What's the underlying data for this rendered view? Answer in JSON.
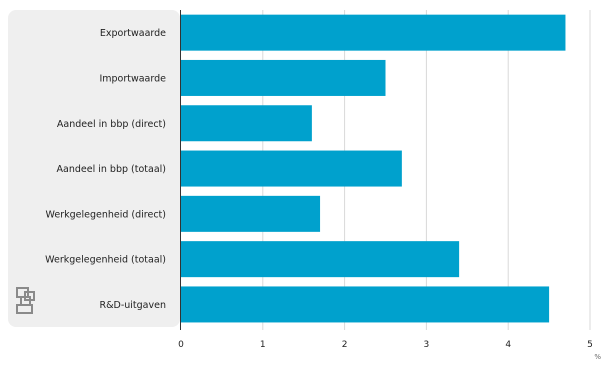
{
  "chart_data": {
    "type": "bar",
    "orientation": "horizontal",
    "categories": [
      "Exportwaarde",
      "Importwaarde",
      "Aandeel in bbp (direct)",
      "Aandeel in bbp (totaal)",
      "Werkgelegenheid (direct)",
      "Werkgelegenheid (totaal)",
      "R&D-uitgaven"
    ],
    "values": [
      4.7,
      2.5,
      1.6,
      2.7,
      1.7,
      3.4,
      4.5
    ],
    "xlim": [
      0,
      5
    ],
    "xticks": [
      "0",
      "1",
      "2",
      "3",
      "4",
      "5"
    ],
    "unit": "%",
    "grid": true,
    "colors": {
      "bar": "#00a1cd",
      "panel": "#efefef",
      "grid": "#d9d9d9",
      "axis": "#333333",
      "text": "#222222"
    }
  },
  "logo": {
    "name": "cbs-logo-icon"
  }
}
